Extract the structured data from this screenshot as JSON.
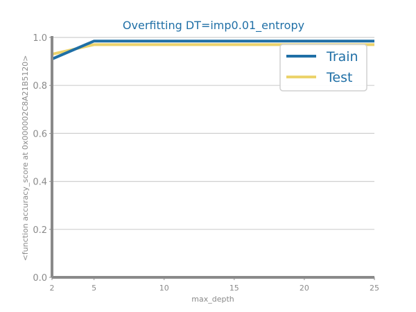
{
  "chart_data": {
    "type": "line",
    "title": "Overfitting DT=imp0.01_entropy",
    "xlabel": "max_depth",
    "ylabel": "<function accuracy_score at 0x000002C8A21B5120>",
    "x": [
      2,
      5,
      10,
      15,
      20,
      25
    ],
    "xticks": [
      2,
      5,
      10,
      15,
      20,
      25
    ],
    "yticks": [
      0.0,
      0.2,
      0.4,
      0.6,
      0.8,
      1.0
    ],
    "xlim": [
      2,
      25
    ],
    "ylim": [
      0.0,
      1.0
    ],
    "grid": "horizontal",
    "legend_position": "top-right",
    "series": [
      {
        "name": "Train",
        "color": "#1f6fa6",
        "values": [
          0.91,
          0.985,
          0.985,
          0.985,
          0.985,
          0.985
        ]
      },
      {
        "name": "Test",
        "color": "#ecd36b",
        "values": [
          0.93,
          0.97,
          0.97,
          0.97,
          0.97,
          0.97
        ]
      }
    ]
  }
}
